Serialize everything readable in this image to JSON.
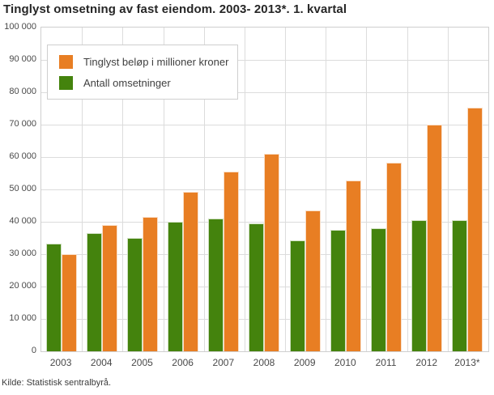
{
  "title": "Tinglyst omsetning av fast eiendom. 2003- 2013*. 1. kvartal",
  "source": "Kilde: Statistisk sentralbyrå.",
  "legend": [
    {
      "label": "Tinglyst beløp i millioner kroner",
      "color": "#e87e23"
    },
    {
      "label": "Antall omsetninger",
      "color": "#44830d"
    }
  ],
  "chart_data": {
    "type": "bar",
    "title": "Tinglyst omsetning av fast eiendom. 2003- 2013*. 1. kvartal",
    "categories": [
      "2003",
      "2004",
      "2005",
      "2006",
      "2007",
      "2008",
      "2009",
      "2010",
      "2011",
      "2012",
      "2013*"
    ],
    "series": [
      {
        "name": "Tinglyst beløp i millioner kroner",
        "color": "#e87e23",
        "values": [
          29900,
          39000,
          41500,
          49200,
          55500,
          61100,
          43600,
          52800,
          58200,
          70000,
          75200
        ]
      },
      {
        "name": "Antall omsetninger",
        "color": "#44830d",
        "values": [
          33200,
          36500,
          34900,
          39900,
          41100,
          39400,
          34200,
          37400,
          38000,
          40500,
          40400
        ]
      }
    ],
    "bar_order_in_group": [
      "Antall omsetninger",
      "Tinglyst beløp i millioner kroner"
    ],
    "xlabel": "",
    "ylabel": "",
    "ylim": [
      0,
      100000
    ],
    "ytick_step": 10000,
    "ytick_labels": [
      "0",
      "10 000",
      "20 000",
      "30 000",
      "40 000",
      "50 000",
      "60 000",
      "70 000",
      "80 000",
      "90 000",
      "100 000"
    ],
    "grid": true,
    "legend_position": "top-left",
    "colors": {
      "grid": "#dcdcdc",
      "plot_border": "#cfcfcf",
      "text": "#4a4a4a"
    }
  }
}
